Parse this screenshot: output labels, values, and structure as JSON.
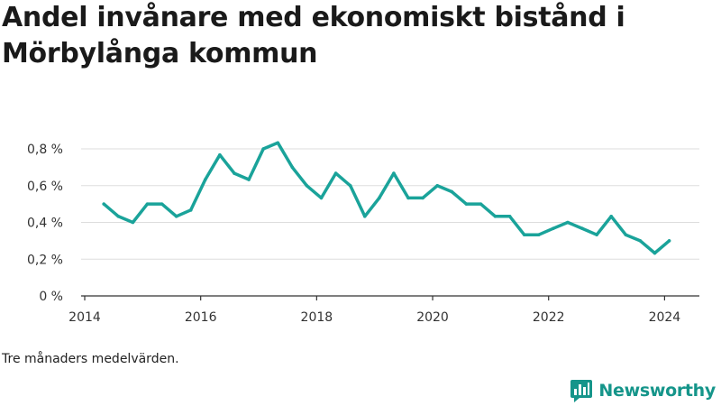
{
  "title": "Andel invånare med ekonomiskt bistånd i Mörbylånga kommun",
  "note": "Tre månaders medelvärden.",
  "brand": {
    "name": "Newsworthy",
    "icon": "bar-chart-icon",
    "color": "#15958a"
  },
  "colors": {
    "line": "#1aa39a",
    "grid": "#dddddd",
    "axis": "#333333",
    "text": "#333333"
  },
  "chart_data": {
    "type": "line",
    "title": "Andel invånare med ekonomiskt bistånd i Mörbylånga kommun",
    "xlabel": "",
    "ylabel": "",
    "xlim": [
      2014,
      2024.6
    ],
    "ylim": [
      0,
      0.8
    ],
    "x_ticks": [
      2014,
      2016,
      2018,
      2020,
      2022,
      2024
    ],
    "y_ticks": [
      {
        "value": 0,
        "label": "0 %"
      },
      {
        "value": 0.2,
        "label": "0,2 %"
      },
      {
        "value": 0.4,
        "label": "0,4 %"
      },
      {
        "value": 0.6,
        "label": "0,6 %"
      },
      {
        "value": 0.8,
        "label": "0,8 %"
      }
    ],
    "grid": true,
    "series": [
      {
        "x": [
          2014.33,
          2014.58,
          2014.83,
          2015.08,
          2015.33,
          2015.58,
          2015.83,
          2016.08,
          2016.33,
          2016.58,
          2016.83,
          2017.08,
          2017.33,
          2017.58,
          2017.83,
          2018.08,
          2018.33,
          2018.58,
          2018.83,
          2019.08,
          2019.33,
          2019.58,
          2019.83,
          2020.08,
          2020.33,
          2020.58,
          2020.83,
          2021.08,
          2021.33,
          2021.58,
          2021.83,
          2022.08,
          2022.33,
          2022.58,
          2022.83,
          2023.08,
          2023.33,
          2023.58,
          2023.83,
          2024.08
        ],
        "values": [
          0.5,
          0.433,
          0.4,
          0.5,
          0.5,
          0.433,
          0.467,
          0.633,
          0.767,
          0.667,
          0.633,
          0.8,
          0.833,
          0.7,
          0.6,
          0.533,
          0.667,
          0.6,
          0.433,
          0.533,
          0.667,
          0.533,
          0.533,
          0.6,
          0.567,
          0.5,
          0.5,
          0.433,
          0.433,
          0.333,
          0.333,
          0.367,
          0.4,
          0.367,
          0.333,
          0.433,
          0.333,
          0.3,
          0.233,
          0.3
        ]
      }
    ]
  }
}
